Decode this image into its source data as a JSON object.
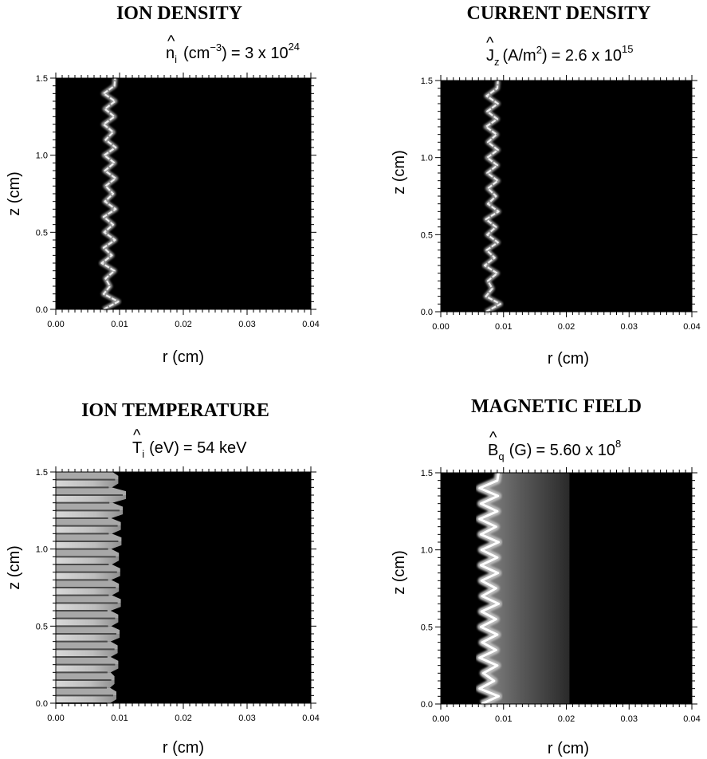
{
  "colors": {
    "background": "#ffffff",
    "plot_background": "#000000",
    "structure": "#ffffff"
  },
  "chart_data": [
    {
      "type": "heatmap",
      "title": "ION DENSITY",
      "scale_label": {
        "symbol": "n",
        "hat": "^",
        "sub": "i",
        "units": "(cm",
        "units_sup": "−3",
        "units_close": ")",
        "eq": "= 3 x 10",
        "exp": "24"
      },
      "xlabel": "r (cm)",
      "ylabel": "z (cm)",
      "xlim": [
        0,
        0.04
      ],
      "ylim": [
        0,
        1.5
      ],
      "xticks": [
        "0.00",
        "0.01",
        "0.02",
        "0.03",
        "0.04"
      ],
      "yticks": [
        "0.0",
        "0.5",
        "1.0",
        "1.5"
      ],
      "structure": "thin bright sinuous filament",
      "ridge": {
        "z": [
          0.0,
          0.05,
          0.1,
          0.15,
          0.2,
          0.25,
          0.3,
          0.35,
          0.4,
          0.45,
          0.5,
          0.55,
          0.6,
          0.65,
          0.7,
          0.75,
          0.8,
          0.85,
          0.9,
          0.95,
          1.0,
          1.05,
          1.1,
          1.15,
          1.2,
          1.25,
          1.3,
          1.35,
          1.4,
          1.45,
          1.5
        ],
        "r": [
          0.0075,
          0.0098,
          0.0075,
          0.0085,
          0.0078,
          0.0092,
          0.0072,
          0.0088,
          0.0075,
          0.0093,
          0.0076,
          0.009,
          0.0075,
          0.0094,
          0.0077,
          0.009,
          0.0078,
          0.0094,
          0.0077,
          0.0092,
          0.0076,
          0.0094,
          0.0078,
          0.009,
          0.0075,
          0.0092,
          0.0077,
          0.0093,
          0.0075,
          0.0092,
          0.0093
        ]
      }
    },
    {
      "type": "heatmap",
      "title": "CURRENT DENSITY",
      "scale_label": {
        "symbol": "J",
        "hat": "^",
        "sub": "z",
        "units": "(A/m",
        "units_sup": "2",
        "units_close": ")",
        "eq": "= 2.6 x 10",
        "exp": "15"
      },
      "xlabel": "r (cm)",
      "ylabel": "z (cm)",
      "xlim": [
        0,
        0.04
      ],
      "ylim": [
        0,
        1.5
      ],
      "xticks": [
        "0.00",
        "0.01",
        "0.02",
        "0.03",
        "0.04"
      ],
      "yticks": [
        "0.0",
        "0.5",
        "1.0",
        "1.5"
      ],
      "structure": "thin bright sinuous filament",
      "ridge": {
        "z": [
          0.0,
          0.05,
          0.1,
          0.15,
          0.2,
          0.25,
          0.3,
          0.35,
          0.4,
          0.45,
          0.5,
          0.55,
          0.6,
          0.65,
          0.7,
          0.75,
          0.8,
          0.85,
          0.9,
          0.95,
          1.0,
          1.05,
          1.1,
          1.15,
          1.2,
          1.25,
          1.3,
          1.35,
          1.4,
          1.45,
          1.5
        ],
        "r": [
          0.0072,
          0.0095,
          0.0072,
          0.0082,
          0.0075,
          0.009,
          0.007,
          0.0086,
          0.0073,
          0.0091,
          0.0074,
          0.0088,
          0.0072,
          0.0092,
          0.0075,
          0.0088,
          0.0075,
          0.0091,
          0.0074,
          0.009,
          0.0074,
          0.0091,
          0.0075,
          0.0089,
          0.0072,
          0.009,
          0.0074,
          0.0091,
          0.0073,
          0.009,
          0.0091
        ]
      }
    },
    {
      "type": "heatmap",
      "title": "ION TEMPERATURE",
      "scale_label": {
        "symbol": "T",
        "hat": "^",
        "sub": "i",
        "units": "(eV)",
        "units_sup": "",
        "units_close": "",
        "eq": "= 54 keV",
        "exp": ""
      },
      "xlabel": "r (cm)",
      "ylabel": "z (cm)",
      "xlim": [
        0,
        0.04
      ],
      "ylim": [
        0,
        1.5
      ],
      "xticks": [
        "0.00",
        "0.01",
        "0.02",
        "0.03",
        "0.04"
      ],
      "yticks": [
        "0.0",
        "0.5",
        "1.0",
        "1.5"
      ],
      "structure": "bright banded core filling r < edge",
      "edge": {
        "z": [
          0.0,
          0.05,
          0.1,
          0.15,
          0.2,
          0.25,
          0.3,
          0.35,
          0.4,
          0.45,
          0.5,
          0.55,
          0.6,
          0.65,
          0.7,
          0.75,
          0.8,
          0.85,
          0.9,
          0.95,
          1.0,
          1.05,
          1.1,
          1.15,
          1.2,
          1.25,
          1.3,
          1.35,
          1.4,
          1.45,
          1.5
        ],
        "r": [
          0.0085,
          0.0095,
          0.0085,
          0.0092,
          0.0086,
          0.0098,
          0.0086,
          0.0097,
          0.0086,
          0.01,
          0.0087,
          0.0098,
          0.0086,
          0.0102,
          0.0088,
          0.0099,
          0.0087,
          0.0101,
          0.0088,
          0.0099,
          0.0087,
          0.0103,
          0.0088,
          0.0102,
          0.0087,
          0.0105,
          0.0089,
          0.011,
          0.0088,
          0.0098,
          0.0089
        ]
      }
    },
    {
      "type": "heatmap",
      "title": "MAGNETIC FIELD",
      "scale_label": {
        "symbol": "B",
        "hat": "^",
        "sub": "q",
        "units": "(G)",
        "units_sup": "",
        "units_close": "",
        "eq": "= 5.60 x 10",
        "exp": "8"
      },
      "xlabel": "r (cm)",
      "ylabel": "z (cm)",
      "xlim": [
        0,
        0.04
      ],
      "ylim": [
        0,
        1.5
      ],
      "xticks": [
        "0.00",
        "0.01",
        "0.02",
        "0.03",
        "0.04"
      ],
      "yticks": [
        "0.0",
        "0.5",
        "1.0",
        "1.5"
      ],
      "structure": "bright sinuous filament with grey halo fading to r ≈ 0.02",
      "halo_outer_r": 0.0205,
      "ridge": {
        "z": [
          0.0,
          0.05,
          0.1,
          0.15,
          0.2,
          0.25,
          0.3,
          0.35,
          0.4,
          0.45,
          0.5,
          0.55,
          0.6,
          0.65,
          0.7,
          0.75,
          0.8,
          0.85,
          0.9,
          0.95,
          1.0,
          1.05,
          1.1,
          1.15,
          1.2,
          1.25,
          1.3,
          1.35,
          1.4,
          1.45,
          1.5
        ],
        "r": [
          0.0065,
          0.0092,
          0.0062,
          0.0085,
          0.0068,
          0.009,
          0.0062,
          0.0088,
          0.0066,
          0.009,
          0.0064,
          0.0088,
          0.0065,
          0.0092,
          0.0066,
          0.0088,
          0.0065,
          0.0091,
          0.0064,
          0.009,
          0.0065,
          0.0092,
          0.0064,
          0.0088,
          0.0062,
          0.009,
          0.0064,
          0.0091,
          0.0062,
          0.009,
          0.0092
        ]
      }
    }
  ]
}
